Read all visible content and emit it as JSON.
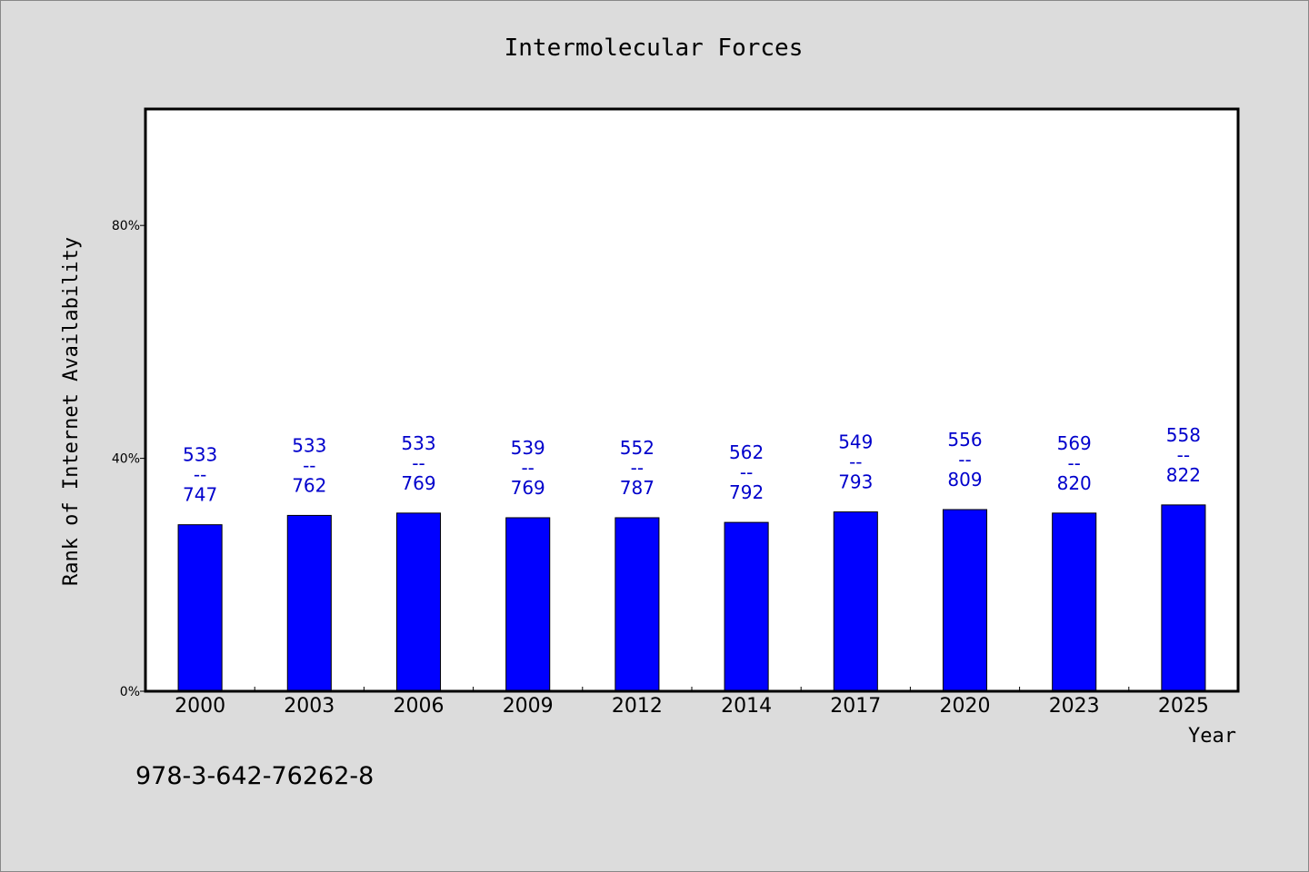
{
  "chart_data": {
    "type": "bar",
    "title": "Intermolecular Forces",
    "xlabel": "Year",
    "ylabel": "Rank of Internet Availability",
    "categories": [
      "2000",
      "2003",
      "2006",
      "2009",
      "2012",
      "2014",
      "2017",
      "2020",
      "2023",
      "2025"
    ],
    "values": [
      28.6,
      30.2,
      30.6,
      29.8,
      29.8,
      29.0,
      30.8,
      31.2,
      30.6,
      32.0
    ],
    "value_unit": "%",
    "data_labels": [
      [
        "533",
        "--",
        "747"
      ],
      [
        "533",
        "--",
        "762"
      ],
      [
        "533",
        "--",
        "769"
      ],
      [
        "539",
        "--",
        "769"
      ],
      [
        "552",
        "--",
        "787"
      ],
      [
        "562",
        "--",
        "792"
      ],
      [
        "549",
        "--",
        "793"
      ],
      [
        "556",
        "--",
        "809"
      ],
      [
        "569",
        "--",
        "820"
      ],
      [
        "558",
        "--",
        "822"
      ]
    ],
    "ylim": [
      0,
      100
    ],
    "yticks": [
      0,
      40,
      80
    ],
    "ytick_labels": [
      "0%",
      "40%",
      "80%"
    ],
    "grid": false,
    "legend": "none",
    "colors": {
      "bar": "#0000ff",
      "data_label": "#0000cc",
      "background": "#dcdcdc",
      "plot_area": "#ffffff"
    }
  },
  "footer": {
    "isbn": "978-3-642-76262-8"
  }
}
